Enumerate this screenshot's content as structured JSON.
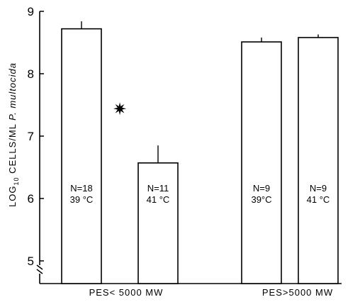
{
  "chart_data": {
    "type": "bar",
    "ylabel_parts": {
      "log": "LOG",
      "sub": "10",
      "rest": " CELLS/ML ",
      "species": "P. multocida"
    },
    "ylim": [
      5,
      9
    ],
    "yticks": [
      "5",
      "6",
      "7",
      "8",
      "9"
    ],
    "group_labels": [
      "PES< 5000 MW",
      "PES>5000 MW"
    ],
    "bars": [
      {
        "value": 8.72,
        "error": 0.12,
        "n_label": "N=18",
        "temp_label": "39 °C"
      },
      {
        "value": 6.57,
        "error": 0.28,
        "n_label": "N=11",
        "temp_label": "41 °C"
      },
      {
        "value": 8.51,
        "error": 0.07,
        "n_label": "N=9",
        "temp_label": "39°C"
      },
      {
        "value": 8.58,
        "error": 0.05,
        "n_label": "N=9",
        "temp_label": "41 °C"
      }
    ],
    "annotation": "✷",
    "axis_break": true,
    "grid": false,
    "colors": {
      "bar_fill": "#ffffff",
      "stroke": "#000000"
    }
  }
}
